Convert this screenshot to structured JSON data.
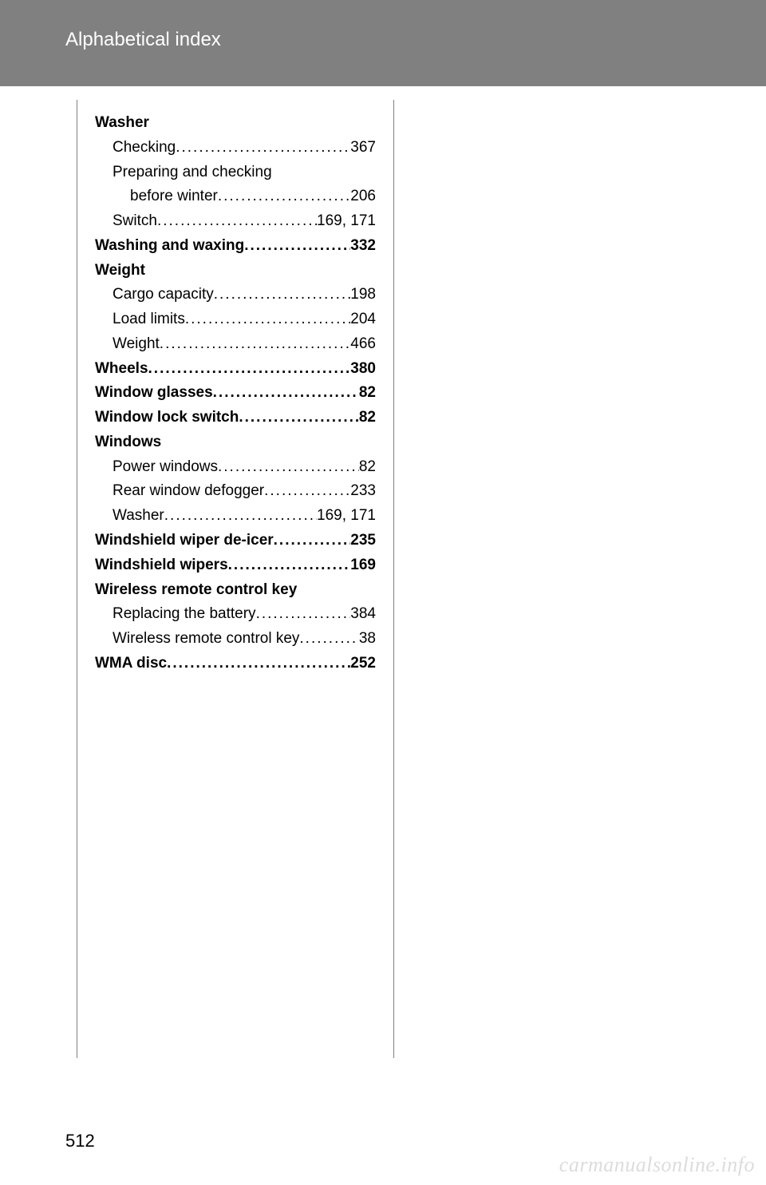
{
  "header": {
    "title": "Alphabetical index"
  },
  "page_number": "512",
  "watermark": "carmanualsonline.info",
  "entries": [
    {
      "label": "Washer",
      "page": "",
      "bold": true,
      "indent": 0,
      "dots": false
    },
    {
      "label": "Checking",
      "page": "367",
      "bold": false,
      "indent": 1,
      "dots": true
    },
    {
      "label": "Preparing and checking",
      "page": "",
      "bold": false,
      "indent": 1,
      "dots": false
    },
    {
      "label": "before winter",
      "page": "206",
      "bold": false,
      "indent": 2,
      "dots": true
    },
    {
      "label": "Switch",
      "page": "169, 171",
      "bold": false,
      "indent": 1,
      "dots": true
    },
    {
      "label": "Washing and waxing",
      "page": "332",
      "bold": true,
      "indent": 0,
      "dots": true
    },
    {
      "label": "Weight",
      "page": "",
      "bold": true,
      "indent": 0,
      "dots": false
    },
    {
      "label": "Cargo capacity",
      "page": "198",
      "bold": false,
      "indent": 1,
      "dots": true
    },
    {
      "label": "Load limits",
      "page": "204",
      "bold": false,
      "indent": 1,
      "dots": true
    },
    {
      "label": "Weight",
      "page": "466",
      "bold": false,
      "indent": 1,
      "dots": true
    },
    {
      "label": "Wheels",
      "page": "380",
      "bold": true,
      "indent": 0,
      "dots": true
    },
    {
      "label": "Window glasses ",
      "page": "82",
      "bold": true,
      "indent": 0,
      "dots": true
    },
    {
      "label": "Window lock switch",
      "page": "82",
      "bold": true,
      "indent": 0,
      "dots": true
    },
    {
      "label": "Windows",
      "page": "",
      "bold": true,
      "indent": 0,
      "dots": false
    },
    {
      "label": "Power windows",
      "page": "82",
      "bold": false,
      "indent": 1,
      "dots": true
    },
    {
      "label": "Rear window defogger",
      "page": "233",
      "bold": false,
      "indent": 1,
      "dots": true
    },
    {
      "label": "Washer",
      "page": "169, 171",
      "bold": false,
      "indent": 1,
      "dots": true
    },
    {
      "label": "Windshield wiper de-icer",
      "page": "235",
      "bold": true,
      "indent": 0,
      "dots": true
    },
    {
      "label": "Windshield wipers",
      "page": "169",
      "bold": true,
      "indent": 0,
      "dots": true
    },
    {
      "label": "Wireless remote control key",
      "page": "",
      "bold": true,
      "indent": 0,
      "dots": false
    },
    {
      "label": "Replacing the battery",
      "page": "384",
      "bold": false,
      "indent": 1,
      "dots": true
    },
    {
      "label": "Wireless remote control key",
      "page": "38",
      "bold": false,
      "indent": 1,
      "dots": true
    },
    {
      "label": "WMA disc",
      "page": "252",
      "bold": true,
      "indent": 0,
      "dots": true
    }
  ]
}
